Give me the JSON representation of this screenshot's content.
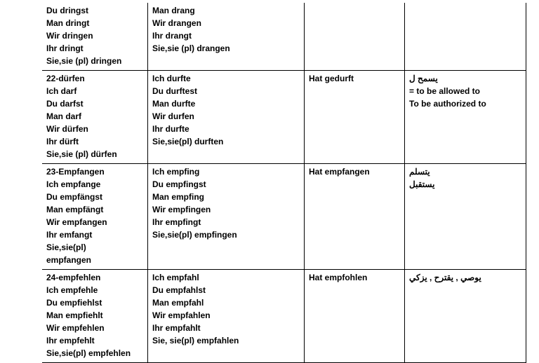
{
  "table": {
    "rows": [
      {
        "col1": [
          "Du dringst",
          "Man dringt",
          "Wir dringen",
          "Ihr dringt",
          "Sie,sie (pl) dringen"
        ],
        "col2": [
          "Man drang",
          "Wir drangen",
          "Ihr drangt",
          "Sie,sie (pl) drangen"
        ],
        "col3": [],
        "col4": []
      },
      {
        "col1": [
          "22-dürfen",
          "Ich darf",
          "Du darfst",
          "Man darf",
          "Wir dürfen",
          "Ihr dürft",
          "Sie,sie (pl)  dürfen"
        ],
        "col2": [
          "Ich durfte",
          "Du durftest",
          "Man durfte",
          "Wir durfen",
          "Ihr durfte",
          "Sie,sie(pl) durften"
        ],
        "col3": [
          "Hat gedurft"
        ],
        "col4": [
          "يسمح ل",
          "= to be allowed to",
          "To be authorized to"
        ]
      },
      {
        "col1": [
          "23-Empfangen",
          "Ich empfange",
          "Du empfängst",
          "Man empfängt",
          "Wir empfangen",
          "Ihr emfangt",
          "Sie,sie(pl)",
          "empfangen"
        ],
        "col2": [
          "Ich empfing",
          "Du empfingst",
          "Man empfing",
          "Wir empfingen",
          "Ihr empfingt",
          "Sie,sie(pl) empfingen"
        ],
        "col3": [
          "Hat empfangen"
        ],
        "col4": [
          "يتسلم",
          "يستقبل"
        ]
      },
      {
        "col1": [
          "24-empfehlen",
          "Ich empfehle",
          "Du empfiehlst",
          "Man empfiehlt",
          "Wir empfehlen",
          "Ihr empfehlt",
          "Sie,sie(pl) empfehlen"
        ],
        "col2": [
          "Ich empfahl",
          "Du empfahlst",
          "Man empfahl",
          "Wir empfahlen",
          "Ihr empfahlt",
          "Sie, sie(pl)  empfahlen"
        ],
        "col3": [
          "Hat empfohlen"
        ],
        "col4": [
          "يوصي , يقترح , يزكي"
        ]
      }
    ]
  }
}
